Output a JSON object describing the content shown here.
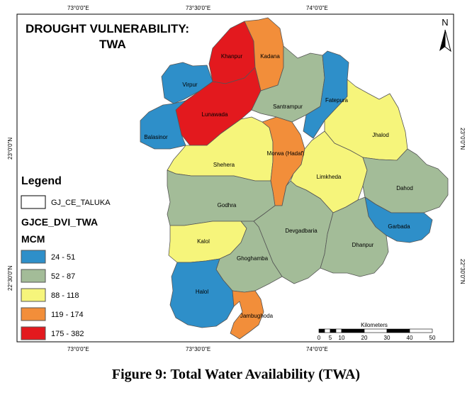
{
  "map": {
    "title_line1": "DROUGHT VULNERABILITY:",
    "title_line2": "TWA",
    "north_label": "N",
    "coords": {
      "top": [
        "73°0'0\"E",
        "73°30'0\"E",
        "74°0'0\"E"
      ],
      "bottom": [
        "73°0'0\"E",
        "73°30'0\"E",
        "74°0'0\"E"
      ],
      "left": [
        "23°0'0\"N",
        "22°30'0\"N"
      ],
      "right": [
        "23°0'0\"N",
        "22°30'0\"N"
      ]
    },
    "legend": {
      "heading": "Legend",
      "boundary_label": "GJ_CE_TALUKA",
      "layer_title": "GJCE_DVI_TWA",
      "unit": "MCM",
      "classes": [
        {
          "label": "24 - 51",
          "color": "#2e8fc9"
        },
        {
          "label": "52 - 87",
          "color": "#a3bc98"
        },
        {
          "label": "88 - 118",
          "color": "#f6f57b"
        },
        {
          "label": "119 - 174",
          "color": "#f28e3a"
        },
        {
          "label": "175 - 382",
          "color": "#e3191e"
        }
      ]
    },
    "scale_bar": {
      "unit": "Kilometers",
      "ticks": [
        "0",
        "5",
        "10",
        "20",
        "30",
        "40",
        "50"
      ]
    },
    "talukas": [
      {
        "name": "Khanpur",
        "class": 4
      },
      {
        "name": "Kadana",
        "class": 3
      },
      {
        "name": "Virpur",
        "class": 0
      },
      {
        "name": "Lunawada",
        "class": 4
      },
      {
        "name": "Santrampur",
        "class": 1
      },
      {
        "name": "Fatepura",
        "class": 0
      },
      {
        "name": "Balasinor",
        "class": 0
      },
      {
        "name": "Jhalod",
        "class": 2
      },
      {
        "name": "Shehera",
        "class": 2
      },
      {
        "name": "Morwa (Hadaf)",
        "class": 3
      },
      {
        "name": "Limkheda",
        "class": 2
      },
      {
        "name": "Dahod",
        "class": 1
      },
      {
        "name": "Godhra",
        "class": 1
      },
      {
        "name": "Garbada",
        "class": 0
      },
      {
        "name": "Kalol",
        "class": 2
      },
      {
        "name": "Devgadbaria",
        "class": 1
      },
      {
        "name": "Dhanpur",
        "class": 1
      },
      {
        "name": "Ghoghamba",
        "class": 1
      },
      {
        "name": "Halol",
        "class": 0
      },
      {
        "name": "Jambughoda",
        "class": 3
      }
    ]
  },
  "caption": "Figure 9: Total Water Availability (TWA)"
}
